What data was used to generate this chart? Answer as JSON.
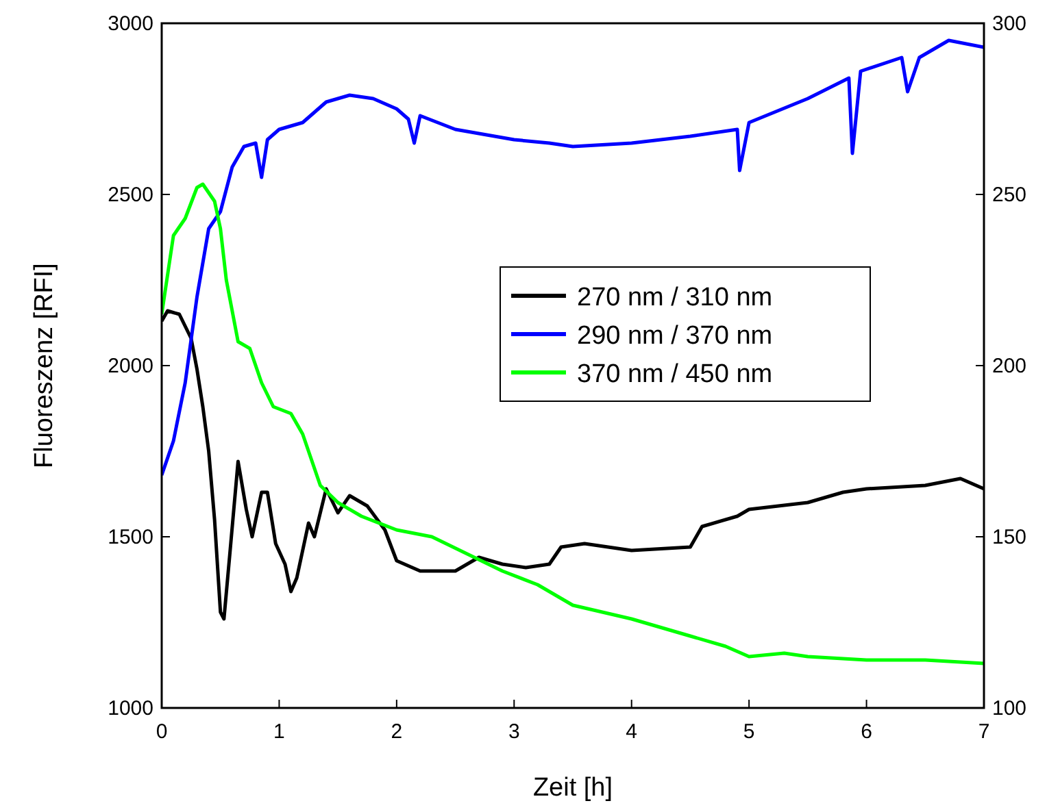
{
  "chart_data": {
    "type": "line",
    "xlabel": "Zeit [h]",
    "ylabel": "Fluoreszenz [RFI]",
    "xlim": [
      0,
      7
    ],
    "xticks": [
      0,
      1,
      2,
      3,
      4,
      5,
      6,
      7
    ],
    "ylim": [
      1000,
      3000
    ],
    "yticks": [
      1000,
      1500,
      2000,
      2500,
      3000
    ],
    "y2lim": [
      100,
      300
    ],
    "y2ticks": [
      100,
      150,
      200,
      250,
      300
    ],
    "legend": "right",
    "grid": false,
    "series": [
      {
        "name": "270 nm / 310 nm",
        "color": "#000000",
        "x": [
          0,
          0.05,
          0.15,
          0.25,
          0.3,
          0.35,
          0.4,
          0.45,
          0.5,
          0.53,
          0.58,
          0.65,
          0.72,
          0.77,
          0.85,
          0.9,
          0.97,
          1.05,
          1.1,
          1.15,
          1.25,
          1.3,
          1.4,
          1.5,
          1.6,
          1.75,
          1.9,
          2,
          2.2,
          2.5,
          2.7,
          2.9,
          3.1,
          3.3,
          3.4,
          3.6,
          4,
          4.5,
          4.6,
          4.9,
          5,
          5.5,
          5.8,
          6,
          6.5,
          6.8,
          7
        ],
        "values": [
          2130,
          2160,
          2150,
          2080,
          1990,
          1880,
          1750,
          1550,
          1280,
          1260,
          1450,
          1720,
          1580,
          1500,
          1630,
          1630,
          1480,
          1420,
          1340,
          1380,
          1540,
          1500,
          1640,
          1570,
          1620,
          1590,
          1520,
          1430,
          1400,
          1400,
          1440,
          1420,
          1410,
          1420,
          1470,
          1480,
          1460,
          1470,
          1530,
          1560,
          1580,
          1600,
          1630,
          1640,
          1650,
          1670,
          1640
        ]
      },
      {
        "name": "290 nm / 370 nm",
        "color": "#0000ff",
        "x": [
          0,
          0.1,
          0.2,
          0.3,
          0.4,
          0.5,
          0.6,
          0.7,
          0.8,
          0.85,
          0.9,
          1,
          1.2,
          1.4,
          1.6,
          1.8,
          2,
          2.1,
          2.15,
          2.2,
          2.5,
          3,
          3.3,
          3.5,
          4,
          4.5,
          4.9,
          4.92,
          5,
          5.5,
          5.85,
          5.88,
          5.95,
          6.3,
          6.35,
          6.45,
          6.7,
          7
        ],
        "values": [
          1680,
          1780,
          1950,
          2200,
          2400,
          2450,
          2580,
          2640,
          2650,
          2550,
          2660,
          2690,
          2710,
          2770,
          2790,
          2780,
          2750,
          2720,
          2650,
          2730,
          2690,
          2660,
          2650,
          2640,
          2650,
          2670,
          2690,
          2570,
          2710,
          2780,
          2840,
          2620,
          2860,
          2900,
          2800,
          2900,
          2950,
          2930
        ]
      },
      {
        "name": "370 nm / 450 nm",
        "color": "#00ff00",
        "axis": "y2",
        "x": [
          0,
          0.1,
          0.2,
          0.3,
          0.35,
          0.45,
          0.5,
          0.55,
          0.65,
          0.75,
          0.85,
          0.95,
          1.1,
          1.2,
          1.35,
          1.5,
          1.7,
          2,
          2.3,
          2.6,
          2.9,
          3.2,
          3.5,
          4,
          4.5,
          4.8,
          5,
          5.3,
          5.5,
          6,
          6.5,
          7
        ],
        "values": [
          215,
          238,
          243,
          252,
          253,
          248,
          240,
          225,
          207,
          205,
          195,
          188,
          186,
          180,
          165,
          160,
          156,
          152,
          150,
          145,
          140,
          136,
          130,
          126,
          121,
          118,
          115,
          116,
          115,
          114,
          114,
          113
        ]
      }
    ]
  }
}
